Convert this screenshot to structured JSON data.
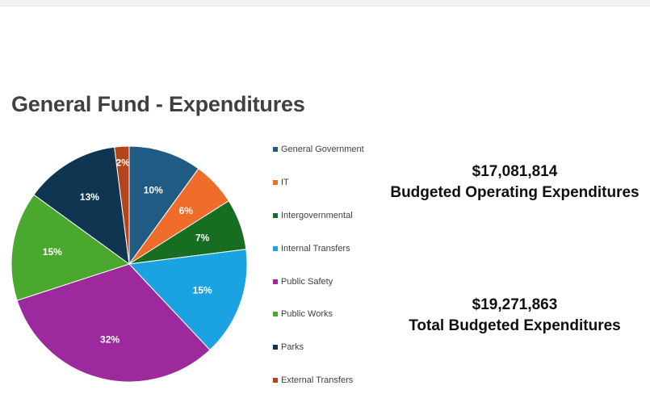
{
  "title": "General Fund - Expenditures",
  "chart_data": {
    "type": "pie",
    "title": "General Fund - Expenditures",
    "labels": [
      "General Government",
      "IT",
      "Intergovernmental",
      "Internal Transfers",
      "Public Safety",
      "Public Works",
      "Parks",
      "External Transfers"
    ],
    "values": [
      10,
      6,
      7,
      15,
      32,
      15,
      13,
      2
    ],
    "value_labels": [
      "10%",
      "6%",
      "7%",
      "15%",
      "32%",
      "15%",
      "13%",
      "2%"
    ],
    "colors": [
      "#1f5b82",
      "#ef6c2a",
      "#176e22",
      "#1aa3e0",
      "#9c2a9c",
      "#4ba82e",
      "#0f3550",
      "#b3441c"
    ],
    "legend_position": "right"
  },
  "stats": {
    "operating": {
      "amount": "$17,081,814",
      "label": "Budgeted Operating Expenditures"
    },
    "total": {
      "amount": "$19,271,863",
      "label": "Total Budgeted Expenditures"
    }
  }
}
